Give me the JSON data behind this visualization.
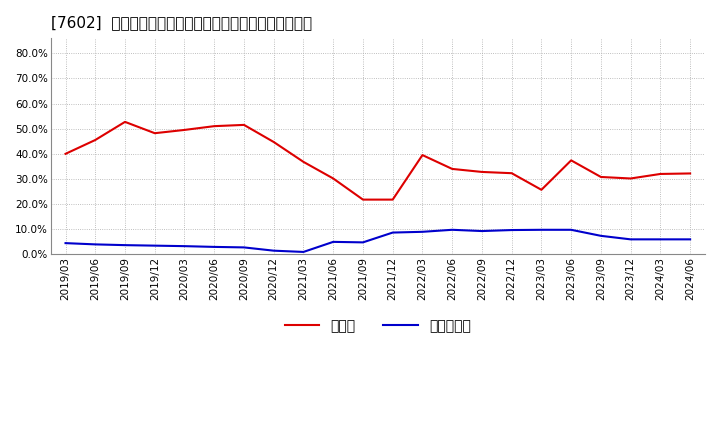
{
  "title": "[7602]  現預金、有利子負債の総資産に対する比率の推移",
  "x_labels": [
    "2019/03",
    "2019/06",
    "2019/09",
    "2019/12",
    "2020/03",
    "2020/06",
    "2020/09",
    "2020/12",
    "2021/03",
    "2021/06",
    "2021/09",
    "2021/12",
    "2022/03",
    "2022/06",
    "2022/09",
    "2022/12",
    "2023/03",
    "2023/06",
    "2023/09",
    "2023/12",
    "2024/03",
    "2024/06"
  ],
  "cash": [
    0.4,
    0.455,
    0.527,
    0.482,
    0.495,
    0.51,
    0.515,
    0.447,
    0.368,
    0.302,
    0.218,
    0.218,
    0.395,
    0.34,
    0.328,
    0.323,
    0.257,
    0.374,
    0.308,
    0.302,
    0.32,
    0.322
  ],
  "debt": [
    0.045,
    0.04,
    0.037,
    0.035,
    0.033,
    0.03,
    0.028,
    0.015,
    0.01,
    0.05,
    0.048,
    0.087,
    0.09,
    0.098,
    0.093,
    0.097,
    0.098,
    0.098,
    0.074,
    0.06,
    0.06,
    0.06
  ],
  "cash_color": "#dd0000",
  "debt_color": "#0000cc",
  "ylim": [
    0.0,
    0.86
  ],
  "yticks": [
    0.0,
    0.1,
    0.2,
    0.3,
    0.4,
    0.5,
    0.6,
    0.7,
    0.8
  ],
  "ytick_labels": [
    "0.0%",
    "10.0%",
    "20.0%",
    "30.0%",
    "40.0%",
    "50.0%",
    "60.0%",
    "70.0%",
    "80.0%"
  ],
  "legend_cash": "現預金",
  "legend_debt": "有利子負債",
  "bg_color": "#ffffff",
  "grid_color": "#aaaaaa",
  "title_fontsize": 11,
  "label_fontsize": 7.5,
  "legend_fontsize": 10
}
